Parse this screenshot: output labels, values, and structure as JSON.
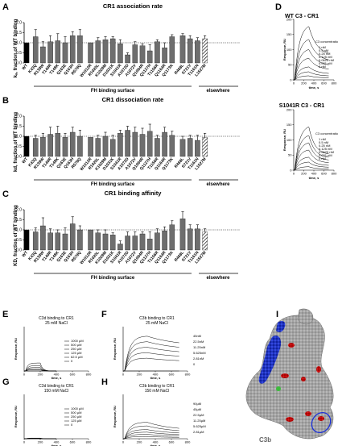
{
  "panels": {
    "A": {
      "label": "A",
      "title": "CR1 association rate",
      "ylabel": "kₐ, fraction of WT binding"
    },
    "B": {
      "label": "B",
      "title": "CR1 dissociation rate",
      "ylabel": "kd, fraction of WT binding"
    },
    "C": {
      "label": "C",
      "title": "CR1 binding affinity",
      "ylabel": "KD, fraction of WT binding"
    },
    "D": {
      "label": "D",
      "title_top": "WT C3 - CR1",
      "title_bottom": "S1041R C3 - CR1"
    },
    "E": {
      "label": "E",
      "title": "C3d binding to CR1",
      "subtitle": "25 mM NaCl"
    },
    "F": {
      "label": "F",
      "title": "C3b binding to CR1",
      "subtitle": "25 mM NaCl"
    },
    "G": {
      "label": "G",
      "title": "C3d binding to CR1",
      "subtitle": "150 mM NaCl"
    },
    "H": {
      "label": "H",
      "title": "C3b binding to CR1",
      "subtitle": "150 mM NaCl"
    },
    "I": {
      "label": "I",
      "caption": "C3b"
    }
  },
  "group_labels": {
    "fh": "FH binding surface",
    "elsewhere": "elsewhere"
  },
  "categories": [
    "WT",
    "K43Q",
    "R139W",
    "T140R",
    "T148K",
    "Q163E",
    "Q163H",
    "R579Q",
    "W1012R",
    "R1020L",
    "K1029M",
    "D1031K",
    "S1041R",
    "A1072D",
    "A1072V",
    "Q1094R",
    "Q1127H",
    "T1156R",
    "Q1164R",
    "Q1173K",
    "R468L",
    "S721V",
    "T1161N",
    "L1527M"
  ],
  "d_axes": {
    "xlabel": "time, s",
    "ylabel": "Response, RU",
    "xticks": [
      0,
      200,
      400,
      600,
      800
    ],
    "yticks": [
      0,
      50,
      100,
      150,
      200
    ],
    "legend_title": "C3 concentration",
    "conc": [
      "1 nM",
      "0.5 nM",
      "0.25 nM",
      "0.125 nM",
      "0.0625 nM",
      "0.031 nM",
      "0 nM"
    ]
  },
  "sensor_axes": {
    "xlabel": "time, s",
    "ylabel": "Response, RU",
    "xticks": [
      0,
      200,
      400,
      600,
      800
    ]
  },
  "e_legend": [
    "1000 µM",
    "500 µM",
    "250 µM",
    "125 µM",
    "62.5 µM",
    "0"
  ],
  "f_legend": [
    "45nM",
    "22.5nM",
    "11.25nM",
    "5.625nM",
    "2.81nM",
    "0"
  ],
  "g_legend": [
    "1000 µM",
    "500 µM",
    "250 µM",
    "125 µM",
    "0"
  ],
  "h_legend": [
    "90µM",
    "45µM",
    "22.5µM",
    "11.25µM",
    "5.625µM",
    "2.81µM"
  ],
  "chart_data": [
    {
      "type": "bar",
      "panel": "A",
      "title": "CR1 association rate",
      "categories": [
        "WT",
        "K43Q",
        "R139W",
        "T140R",
        "T148K",
        "Q163E",
        "Q163H",
        "R579Q",
        "W1012R",
        "R1020L",
        "K1029M",
        "D1031K",
        "S1041R",
        "A1072D",
        "A1072V",
        "Q1094R",
        "Q1127H",
        "T1156R",
        "Q1164R",
        "Q1173K",
        "R468L",
        "S721V",
        "T1161N",
        "L1527M"
      ],
      "values": [
        1.0,
        1.3,
        0.8,
        1.05,
        1.1,
        1.0,
        1.35,
        1.35,
        1.0,
        1.1,
        1.15,
        1.2,
        0.95,
        0.4,
        0.9,
        0.85,
        0.6,
        1.05,
        0.75,
        1.3,
        1.35,
        1.2,
        1.1,
        1.2
      ],
      "errors": [
        0,
        0.35,
        0.25,
        0.3,
        0.35,
        0.3,
        0.2,
        0.3,
        0,
        0.15,
        0.15,
        0.1,
        0.2,
        0.1,
        0.15,
        0.1,
        0.3,
        0.1,
        0.25,
        0.1,
        0.1,
        0.15,
        0.15,
        0.15
      ],
      "ylim": [
        0,
        2.0
      ],
      "yticks": [
        0,
        0.5,
        1.0,
        1.5,
        2.0
      ],
      "reference_line": 1.0
    },
    {
      "type": "bar",
      "panel": "B",
      "title": "CR1 dissociation rate",
      "categories": [
        "WT",
        "K43Q",
        "R139W",
        "T140R",
        "T148K",
        "Q163E",
        "Q163H",
        "R579Q",
        "W1012R",
        "R1020L",
        "K1029M",
        "D1031K",
        "S1041R",
        "A1072D",
        "A1072V",
        "Q1094R",
        "Q1127H",
        "T1156R",
        "Q1164R",
        "Q1173K",
        "R468L",
        "S721V",
        "T1161N",
        "L1527M"
      ],
      "values": [
        1.0,
        0.9,
        0.95,
        1.1,
        1.15,
        0.95,
        1.2,
        1.0,
        0.95,
        0.9,
        1.0,
        0.85,
        1.15,
        1.3,
        1.2,
        1.1,
        1.25,
        0.9,
        1.2,
        1.05,
        0.85,
        0.9,
        0.8,
        0.95
      ],
      "errors": [
        0,
        0.15,
        0.2,
        0.35,
        0.35,
        0.2,
        0.25,
        0.3,
        0,
        0.15,
        0.2,
        0.2,
        0.15,
        0.2,
        0.25,
        0.3,
        0.35,
        0.15,
        0.25,
        0.2,
        0.15,
        0.15,
        0.25,
        0.2
      ],
      "ylim": [
        0,
        2.0
      ],
      "yticks": [
        0,
        0.5,
        1.0,
        1.5,
        2.0
      ],
      "reference_line": 1.0
    },
    {
      "type": "bar",
      "panel": "C",
      "title": "CR1 binding affinity",
      "categories": [
        "WT",
        "K43Q",
        "R139W",
        "T140R",
        "T148K",
        "Q163E",
        "Q163H",
        "R579Q",
        "W1012R",
        "R1020L",
        "K1029M",
        "D1031K",
        "S1041R",
        "A1072D",
        "A1072V",
        "Q1094R",
        "Q1127H",
        "T1156R",
        "Q1164R",
        "Q1173K",
        "R468L",
        "S721V",
        "T1161N",
        "L1527M"
      ],
      "values": [
        1.0,
        0.9,
        1.2,
        0.85,
        0.85,
        0.8,
        1.3,
        1.0,
        1.0,
        0.85,
        0.8,
        0.75,
        0.3,
        0.7,
        0.7,
        0.8,
        0.55,
        0.85,
        0.95,
        1.25,
        1.55,
        1.05,
        1.05,
        0.9
      ],
      "errors": [
        0,
        0.2,
        0.4,
        0.2,
        0.15,
        0.3,
        0.35,
        0.2,
        0,
        0.15,
        0.2,
        0.1,
        0.15,
        0.2,
        0.2,
        0.1,
        0.35,
        0.2,
        0.2,
        0.2,
        0.35,
        0.2,
        0.2,
        0.15
      ],
      "ylim": [
        0,
        2.0
      ],
      "yticks": [
        0,
        0.5,
        1.0,
        1.5,
        2.0
      ],
      "reference_line": 1.0
    }
  ]
}
